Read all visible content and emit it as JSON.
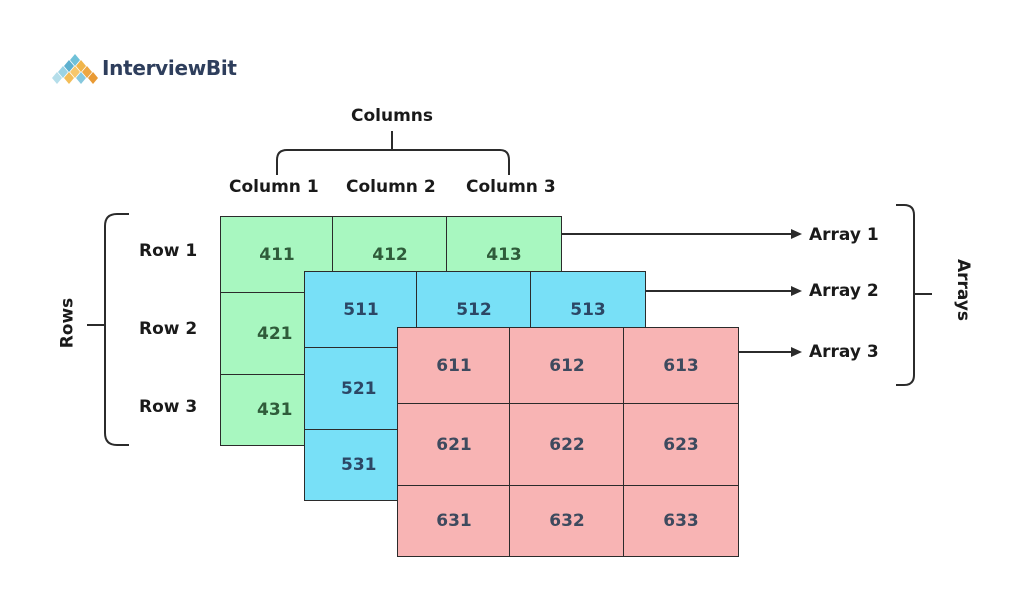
{
  "logo": {
    "text": "InterviewBit"
  },
  "columns": {
    "heading": "Columns",
    "labels": [
      "Column 1",
      "Column 2",
      "Column 3"
    ]
  },
  "rows": {
    "heading": "Rows",
    "labels": [
      "Row 1",
      "Row 2",
      "Row 3"
    ]
  },
  "arrays": {
    "heading": "Arrays",
    "labels": [
      "Array 1",
      "Array 2",
      "Array 3"
    ]
  },
  "grids": {
    "array1": {
      "color": "#a8f7c0",
      "cells": [
        "411",
        "412",
        "413",
        "421",
        "431"
      ]
    },
    "array2": {
      "color": "#78e0f7",
      "cells": [
        "511",
        "512",
        "513",
        "521",
        "531"
      ]
    },
    "array3": {
      "color": "#f8b4b4",
      "cells": [
        "611",
        "612",
        "613",
        "621",
        "622",
        "623",
        "631",
        "632",
        "633"
      ]
    }
  }
}
